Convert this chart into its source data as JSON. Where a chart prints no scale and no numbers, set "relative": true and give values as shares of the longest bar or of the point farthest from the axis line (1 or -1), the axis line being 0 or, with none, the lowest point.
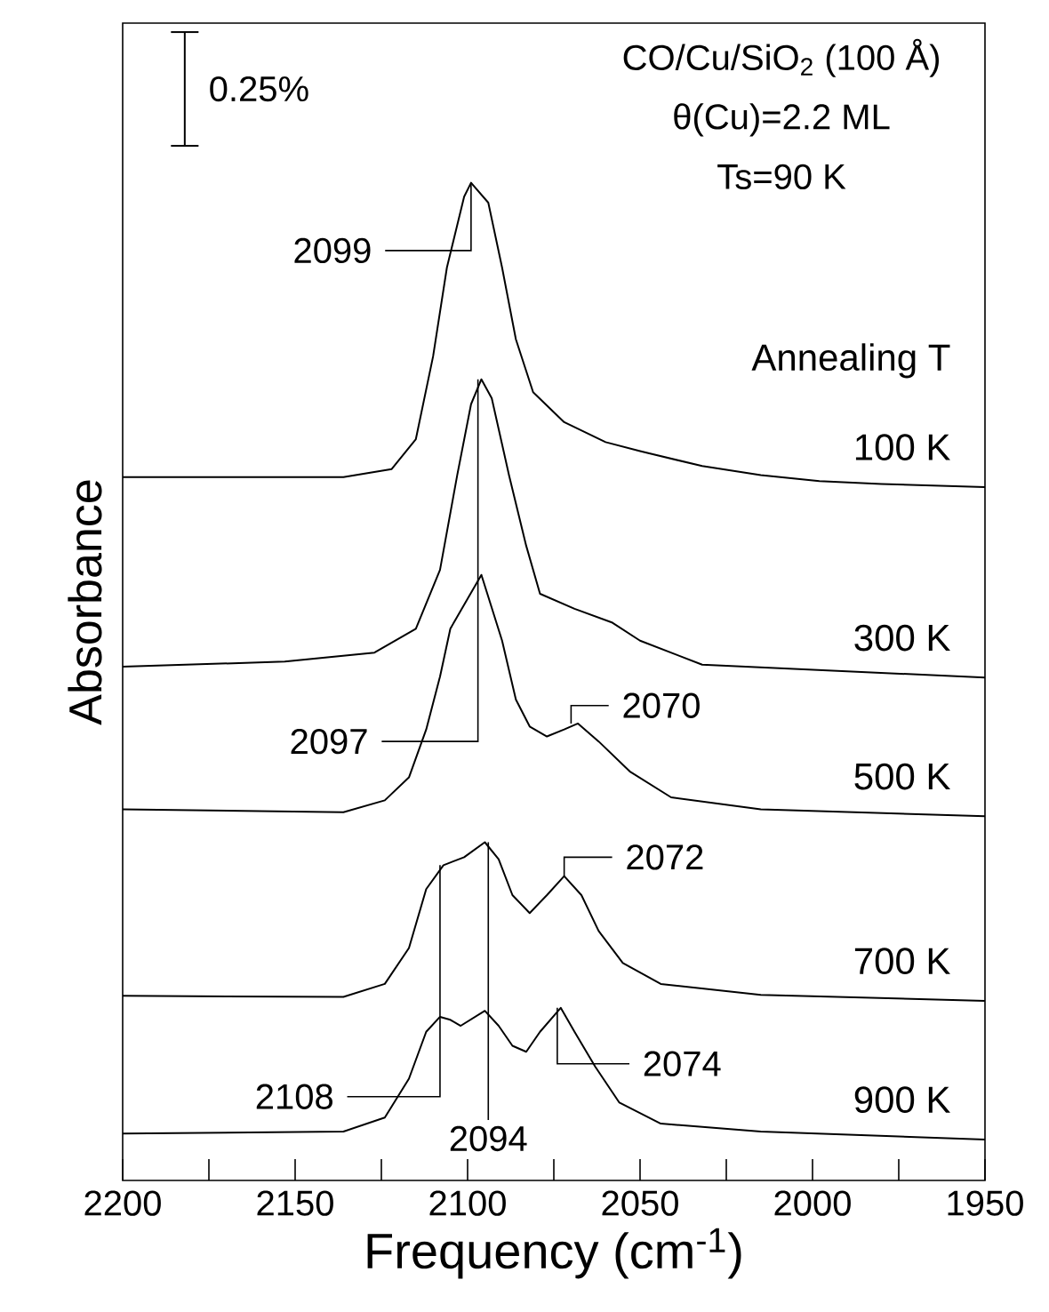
{
  "chart_data": {
    "type": "line",
    "relative": true,
    "xlabel": "Frequency (cm$^{-1}$)",
    "ylabel": "Absorbance",
    "legend_title": "Annealing T",
    "xlim": [
      2200,
      1950
    ],
    "xticks": [
      2200,
      {
        "value": 2175,
        "label": null
      },
      2150,
      {
        "value": 2125,
        "label": null
      },
      2100,
      {
        "value": 2075,
        "label": null
      },
      2050,
      {
        "value": 2025,
        "label": null
      },
      2000,
      {
        "value": 1975,
        "label": null
      },
      1950
    ],
    "series": [
      {
        "name": "100 K",
        "color": "#000000",
        "x": [
          2200,
          2153,
          2136,
          2122,
          2115,
          2110,
          2106,
          2101,
          2099,
          2094,
          2090,
          2086,
          2081,
          2072,
          2060,
          2050,
          2032,
          2015,
          1998,
          1980,
          1950
        ],
        "values": [
          0.705,
          0.705,
          0.705,
          0.713,
          0.743,
          0.826,
          0.915,
          0.986,
          1.0,
          0.98,
          0.915,
          0.843,
          0.79,
          0.76,
          0.74,
          0.731,
          0.716,
          0.707,
          0.701,
          0.698,
          0.695
        ]
      },
      {
        "name": "300 K",
        "color": "#000000",
        "x": [
          2200,
          2153,
          2127,
          2115,
          2108,
          2103,
          2099,
          2096,
          2093,
          2088,
          2083,
          2079,
          2069,
          2058,
          2050,
          2032,
          1950
        ],
        "values": [
          0.515,
          0.52,
          0.529,
          0.553,
          0.612,
          0.707,
          0.778,
          0.803,
          0.784,
          0.707,
          0.636,
          0.588,
          0.573,
          0.559,
          0.541,
          0.517,
          0.504
        ]
      },
      {
        "name": "500 K",
        "color": "#000000",
        "x": [
          2200,
          2136,
          2124,
          2117,
          2112,
          2108,
          2105,
          2096,
          2090,
          2086,
          2082,
          2077,
          2072,
          2068,
          2062,
          2053,
          2041,
          2015,
          1950
        ],
        "values": [
          0.372,
          0.369,
          0.381,
          0.404,
          0.452,
          0.505,
          0.553,
          0.607,
          0.541,
          0.482,
          0.455,
          0.445,
          0.452,
          0.458,
          0.44,
          0.41,
          0.384,
          0.372,
          0.365
        ]
      },
      {
        "name": "700 K",
        "color": "#000000",
        "x": [
          2200,
          2136,
          2124,
          2117,
          2112,
          2107,
          2101,
          2095,
          2091,
          2087,
          2082,
          2077,
          2072,
          2067,
          2062,
          2055,
          2044,
          2015,
          1950
        ],
        "values": [
          0.185,
          0.184,
          0.197,
          0.233,
          0.292,
          0.316,
          0.324,
          0.339,
          0.322,
          0.286,
          0.268,
          0.286,
          0.305,
          0.286,
          0.25,
          0.218,
          0.197,
          0.186,
          0.18
        ]
      },
      {
        "name": "900 K",
        "color": "#000000",
        "x": [
          2200,
          2136,
          2124,
          2117,
          2112,
          2108,
          2105,
          2102,
          2095,
          2091,
          2087,
          2083,
          2079,
          2073,
          2069,
          2063,
          2056,
          2044,
          2015,
          1950
        ],
        "values": [
          0.047,
          0.049,
          0.063,
          0.102,
          0.149,
          0.164,
          0.161,
          0.155,
          0.17,
          0.155,
          0.135,
          0.129,
          0.149,
          0.173,
          0.149,
          0.114,
          0.078,
          0.057,
          0.049,
          0.041
        ]
      }
    ],
    "annotations": [
      "0.25%",
      "CO/Cu/SiO$_{2}$ (100 Å)",
      "θ(Cu)=2.2 ML",
      "Ts=90 K",
      {
        "text": "2099",
        "x": 2099,
        "y": 1.0
      },
      {
        "text": "2097",
        "x": 2097,
        "y": 0.803
      },
      {
        "text": "2070",
        "x": 2070,
        "y": 0.458
      },
      {
        "text": "2072",
        "x": 2072,
        "y": 0.305
      },
      {
        "text": "2074",
        "x": 2074,
        "y": 0.173
      },
      {
        "text": "2108",
        "x": 2108,
        "y": 0.316
      },
      {
        "text": "2094",
        "x": 2094,
        "y": 0.339
      }
    ]
  }
}
